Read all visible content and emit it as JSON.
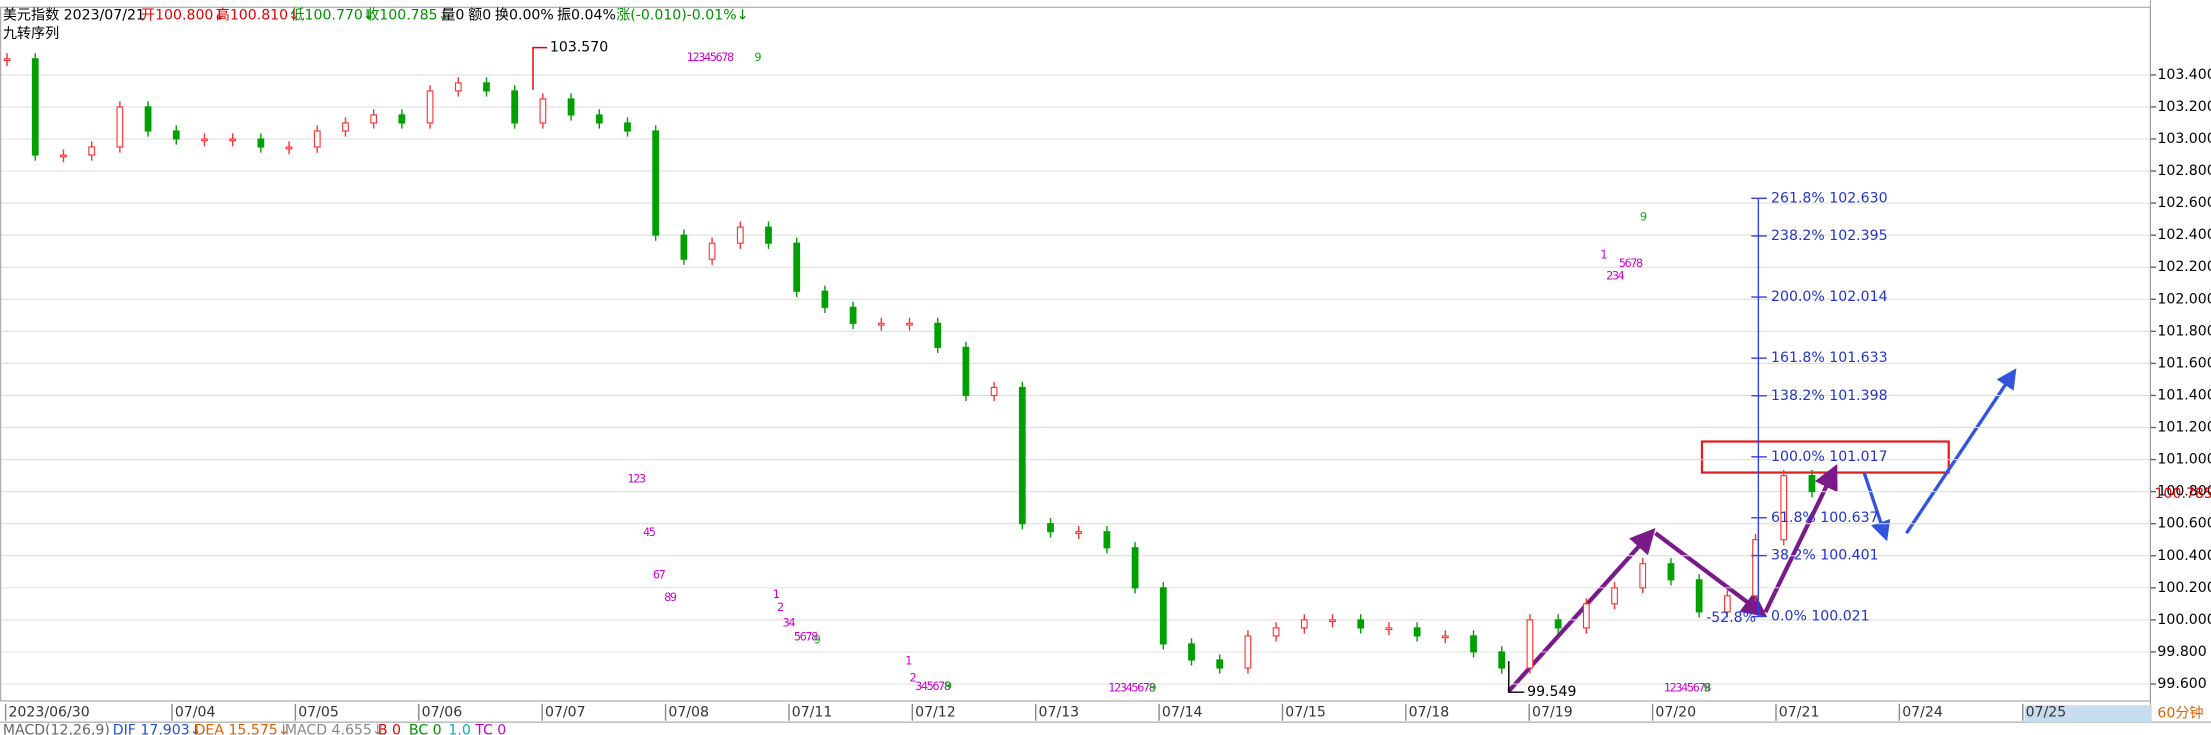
{
  "header": {
    "symbol": "美元指数 2023/07/21",
    "open": "开100.800↓",
    "high": "高100.810↓",
    "low": "低100.770↓",
    "close": "收100.785↓",
    "volume": "量0",
    "amount": "额0",
    "turnover": "换0.00%",
    "amplitude": "振0.04%",
    "change": "涨(-0.010)-0.01%↓",
    "indicator": "九转序列"
  },
  "chart_data": {
    "type": "candlestick",
    "values": [
      103.5,
      102.9,
      102.9,
      102.95,
      103.2,
      103.05,
      103.0,
      103.0,
      103.0,
      102.95,
      102.95,
      103.05,
      103.1,
      103.15,
      103.1,
      103.3,
      103.35,
      103.3,
      103.1,
      103.25,
      103.15,
      103.1,
      103.05,
      102.4,
      102.25,
      102.35,
      102.45,
      102.35,
      102.05,
      101.95,
      101.85,
      101.85,
      101.85,
      101.7,
      101.4,
      101.45,
      100.6,
      100.55,
      100.55,
      100.45,
      100.2,
      99.85,
      99.75,
      99.7,
      99.9,
      99.95,
      100.0,
      100.0,
      99.95,
      99.95,
      99.9,
      99.9,
      99.8,
      99.7,
      100.0,
      99.95,
      100.1,
      100.2,
      100.35,
      100.25,
      100.05,
      100.15,
      100.5,
      100.9,
      100.8
    ],
    "up_color": "#ff3232",
    "down_color": "#00a000",
    "ylim": [
      99.494,
      103.822
    ],
    "yticks": [
      {
        "value": 99.6,
        "label": "99.600"
      },
      {
        "value": 99.8,
        "label": "99.800"
      },
      {
        "value": 100,
        "label": "100.000"
      },
      {
        "value": 100.2,
        "label": "100.200"
      },
      {
        "value": 100.4,
        "label": "100.400"
      },
      {
        "value": 100.6,
        "label": "100.600"
      },
      {
        "value": 100.8,
        "label": "100.800"
      },
      {
        "value": 101,
        "label": "101.000"
      },
      {
        "value": 101.2,
        "label": "101.200"
      },
      {
        "value": 101.4,
        "label": "101.400"
      },
      {
        "value": 101.6,
        "label": "101.600"
      },
      {
        "value": 101.8,
        "label": "101.800"
      },
      {
        "value": 102,
        "label": "102.000"
      },
      {
        "value": 102.2,
        "label": "102.200"
      },
      {
        "value": 102.4,
        "label": "102.400"
      },
      {
        "value": 102.6,
        "label": "102.600"
      },
      {
        "value": 102.8,
        "label": "102.800"
      },
      {
        "value": 103,
        "label": "103.000"
      },
      {
        "value": 103.2,
        "label": "103.200"
      },
      {
        "value": 103.4,
        "label": "103.400"
      }
    ],
    "grid": true,
    "x_labels": [
      "2023/06/30",
      "07/04",
      "07/05",
      "07/06",
      "07/07",
      "07/08",
      "07/11",
      "07/12",
      "07/13",
      "07/14",
      "07/15",
      "07/18",
      "07/19",
      "07/20",
      "07/21",
      "07/24",
      "07/25"
    ],
    "last_price": {
      "value": 100.785,
      "label": "100.785"
    },
    "high_mark": {
      "value": 103.57,
      "label": "103.570"
    },
    "low_mark": {
      "value": 99.549,
      "label": "99.549"
    },
    "fib_levels": [
      {
        "value": 102.63,
        "label": "261.8% 102.630"
      },
      {
        "value": 102.395,
        "label": "238.2% 102.395"
      },
      {
        "value": 102.014,
        "label": "200.0% 102.014"
      },
      {
        "value": 101.633,
        "label": "161.8% 101.633"
      },
      {
        "value": 101.398,
        "label": "138.2% 101.398"
      },
      {
        "value": 101.017,
        "label": "100.0% 101.017"
      },
      {
        "value": 100.637,
        "label": "61.8% 100.637"
      },
      {
        "value": 100.401,
        "label": "38.2% 100.401"
      },
      {
        "value": 100.021,
        "label": "0.0% 100.021"
      }
    ],
    "fib_note": "-52.8%",
    "td_marks": [
      "12345678",
      "9",
      "12345678",
      "9",
      "12345678",
      "9",
      "123",
      "45",
      "67",
      "89",
      "1",
      "2",
      "34",
      "5678",
      "9",
      "1",
      "2",
      "345678",
      "9",
      "1",
      "234",
      "5678",
      "9"
    ],
    "period": "60分钟"
  },
  "macd": {
    "name": "MACD(12,26,9)",
    "dif": "DIF 17.903↓",
    "dea": "DEA 15.575↓",
    "macd": "MACD 4.655↓",
    "b": "B 0",
    "bc": "BC 0",
    "one": "1.0",
    "tc": "TC 0"
  }
}
